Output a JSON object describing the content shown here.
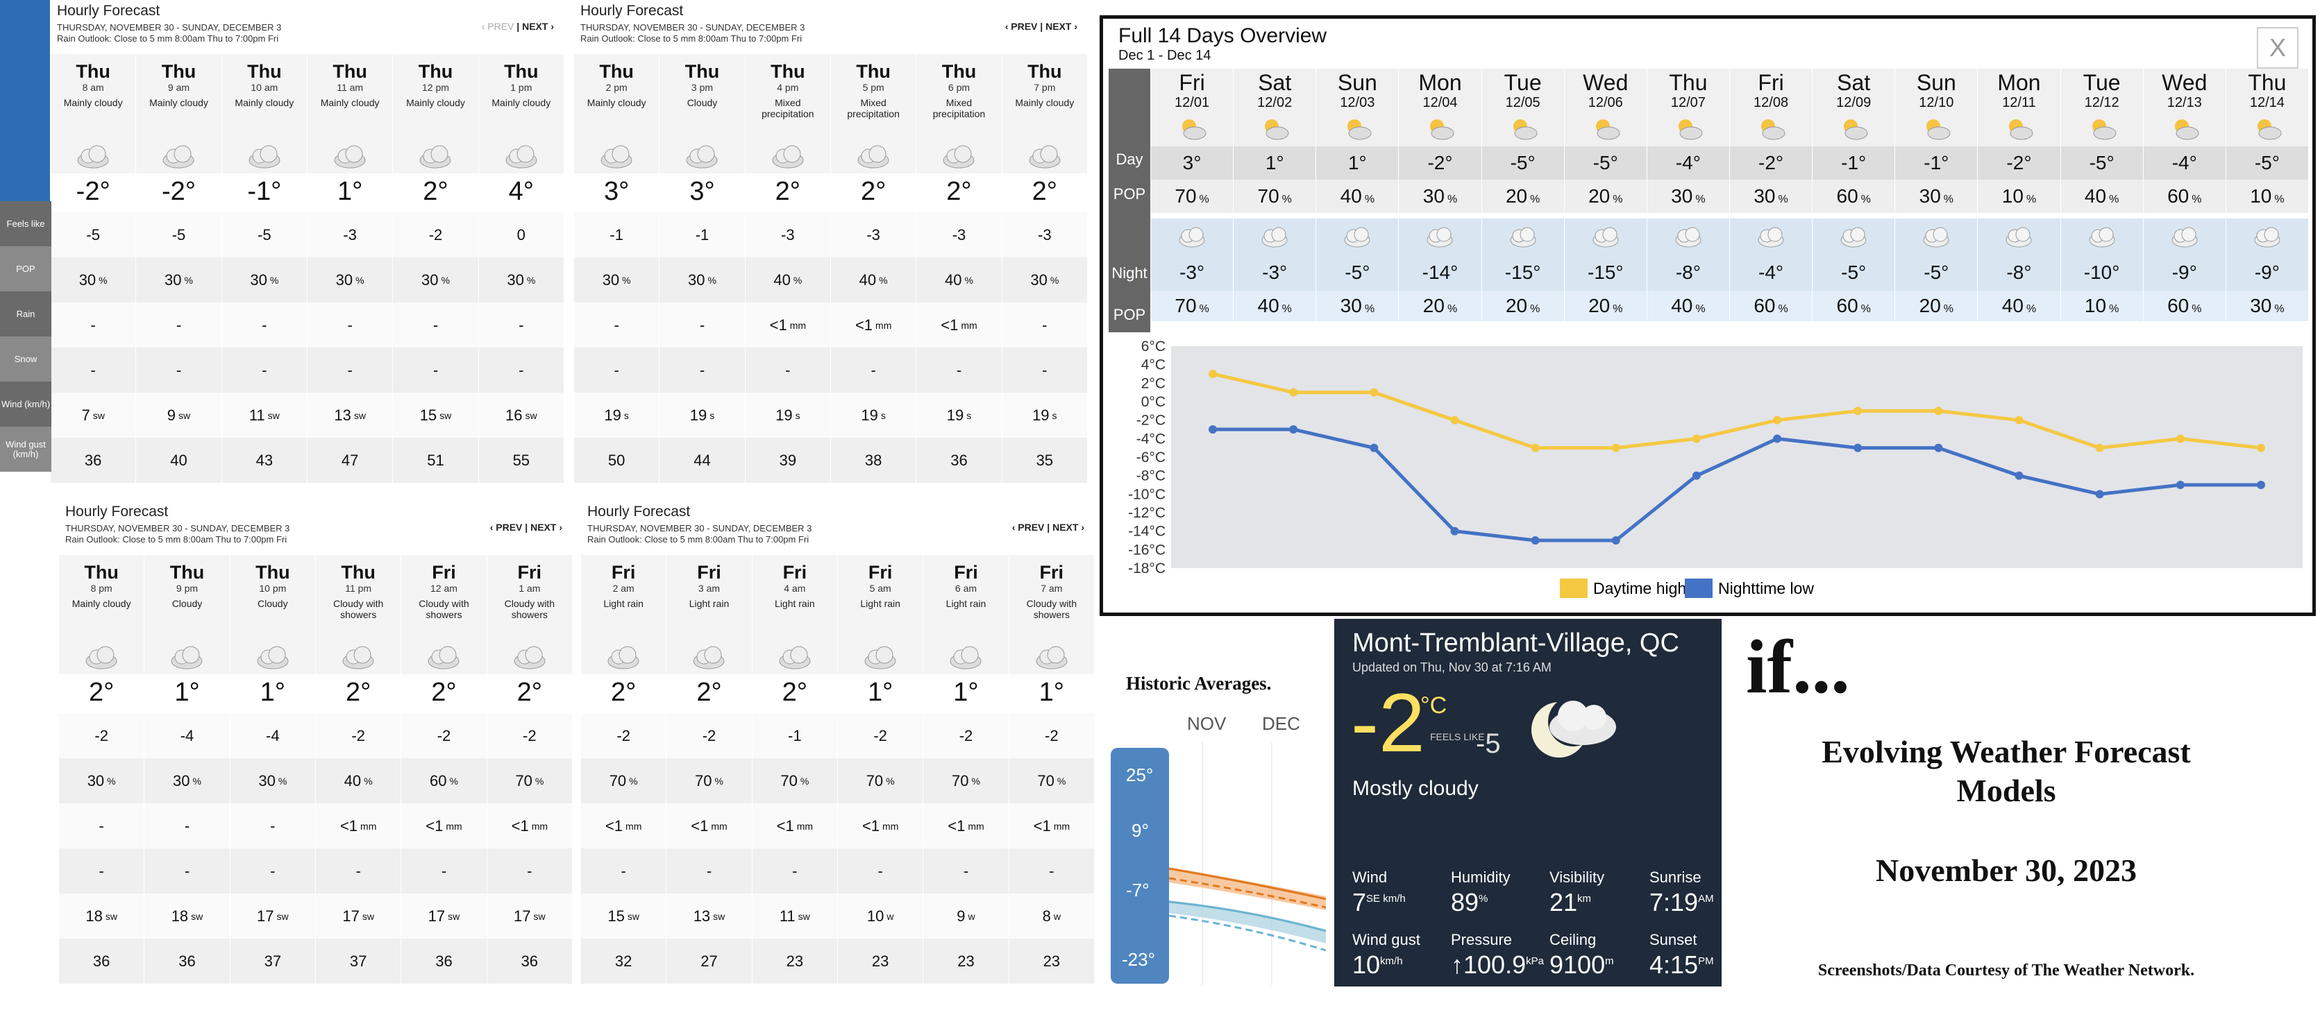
{
  "hourly_panels": [
    {
      "title": "Hourly Forecast",
      "range": "THURSDAY, NOVEMBER 30 - SUNDAY, DECEMBER 3",
      "outlook": "Rain Outlook: Close to 5 mm 8:00am Thu to 7:00pm Fri",
      "prev": "‹ PREV",
      "next": "NEXT ›",
      "cols": [
        {
          "day": "Thu",
          "time": "8 am",
          "cond": "Mainly cloudy",
          "temp": "-2°",
          "feels": "-5",
          "pop": "30",
          "rain": "-",
          "snow": "-",
          "wind": "7",
          "dir": "sw",
          "gust": "36"
        },
        {
          "day": "Thu",
          "time": "9 am",
          "cond": "Mainly cloudy",
          "temp": "-2°",
          "feels": "-5",
          "pop": "30",
          "rain": "-",
          "snow": "-",
          "wind": "9",
          "dir": "sw",
          "gust": "40"
        },
        {
          "day": "Thu",
          "time": "10 am",
          "cond": "Mainly cloudy",
          "temp": "-1°",
          "feels": "-5",
          "pop": "30",
          "rain": "-",
          "snow": "-",
          "wind": "11",
          "dir": "sw",
          "gust": "43"
        },
        {
          "day": "Thu",
          "time": "11 am",
          "cond": "Mainly cloudy",
          "temp": "1°",
          "feels": "-3",
          "pop": "30",
          "rain": "-",
          "snow": "-",
          "wind": "13",
          "dir": "sw",
          "gust": "47"
        },
        {
          "day": "Thu",
          "time": "12 pm",
          "cond": "Mainly cloudy",
          "temp": "2°",
          "feels": "-2",
          "pop": "30",
          "rain": "-",
          "snow": "-",
          "wind": "15",
          "dir": "sw",
          "gust": "51"
        },
        {
          "day": "Thu",
          "time": "1 pm",
          "cond": "Mainly cloudy",
          "temp": "4°",
          "feels": "0",
          "pop": "30",
          "rain": "-",
          "snow": "-",
          "wind": "16",
          "dir": "sw",
          "gust": "55"
        }
      ]
    },
    {
      "title": "Hourly Forecast",
      "range": "THURSDAY, NOVEMBER 30 - SUNDAY, DECEMBER 3",
      "outlook": "Rain Outlook: Close to 5 mm 8:00am Thu to 7:00pm Fri",
      "prev": "‹ PREV",
      "next": "NEXT ›",
      "cols": [
        {
          "day": "Thu",
          "time": "2 pm",
          "cond": "Mainly cloudy",
          "temp": "3°",
          "feels": "-1",
          "pop": "30",
          "rain": "-",
          "snow": "-",
          "wind": "19",
          "dir": "s",
          "gust": "50"
        },
        {
          "day": "Thu",
          "time": "3 pm",
          "cond": "Cloudy",
          "temp": "3°",
          "feels": "-1",
          "pop": "30",
          "rain": "-",
          "snow": "-",
          "wind": "19",
          "dir": "s",
          "gust": "44"
        },
        {
          "day": "Thu",
          "time": "4 pm",
          "cond": "Mixed precipitation",
          "temp": "2°",
          "feels": "-3",
          "pop": "40",
          "rain": "<1",
          "snow": "-",
          "wind": "19",
          "dir": "s",
          "gust": "39"
        },
        {
          "day": "Thu",
          "time": "5 pm",
          "cond": "Mixed precipitation",
          "temp": "2°",
          "feels": "-3",
          "pop": "40",
          "rain": "<1",
          "snow": "-",
          "wind": "19",
          "dir": "s",
          "gust": "38"
        },
        {
          "day": "Thu",
          "time": "6 pm",
          "cond": "Mixed precipitation",
          "temp": "2°",
          "feels": "-3",
          "pop": "40",
          "rain": "<1",
          "snow": "-",
          "wind": "19",
          "dir": "s",
          "gust": "36"
        },
        {
          "day": "Thu",
          "time": "7 pm",
          "cond": "Mainly cloudy",
          "temp": "2°",
          "feels": "-3",
          "pop": "30",
          "rain": "-",
          "snow": "-",
          "wind": "19",
          "dir": "s",
          "gust": "35"
        }
      ]
    },
    {
      "title": "Hourly Forecast",
      "range": "THURSDAY, NOVEMBER 30 - SUNDAY, DECEMBER 3",
      "outlook": "Rain Outlook: Close to 5 mm 8:00am Thu to 7:00pm Fri",
      "prev": "‹ PREV",
      "next": "NEXT ›",
      "cols": [
        {
          "day": "Thu",
          "time": "8 pm",
          "cond": "Mainly cloudy",
          "temp": "2°",
          "feels": "-2",
          "pop": "30",
          "rain": "-",
          "snow": "-",
          "wind": "18",
          "dir": "sw",
          "gust": "36"
        },
        {
          "day": "Thu",
          "time": "9 pm",
          "cond": "Cloudy",
          "temp": "1°",
          "feels": "-4",
          "pop": "30",
          "rain": "-",
          "snow": "-",
          "wind": "18",
          "dir": "sw",
          "gust": "36"
        },
        {
          "day": "Thu",
          "time": "10 pm",
          "cond": "Cloudy",
          "temp": "1°",
          "feels": "-4",
          "pop": "30",
          "rain": "-",
          "snow": "-",
          "wind": "17",
          "dir": "sw",
          "gust": "37"
        },
        {
          "day": "Thu",
          "time": "11 pm",
          "cond": "Cloudy with showers",
          "temp": "2°",
          "feels": "-2",
          "pop": "40",
          "rain": "<1",
          "snow": "-",
          "wind": "17",
          "dir": "sw",
          "gust": "37"
        },
        {
          "day": "Fri",
          "time": "12 am",
          "cond": "Cloudy with showers",
          "temp": "2°",
          "feels": "-2",
          "pop": "60",
          "rain": "<1",
          "snow": "-",
          "wind": "17",
          "dir": "sw",
          "gust": "36"
        },
        {
          "day": "Fri",
          "time": "1 am",
          "cond": "Cloudy with showers",
          "temp": "2°",
          "feels": "-2",
          "pop": "70",
          "rain": "<1",
          "snow": "-",
          "wind": "17",
          "dir": "sw",
          "gust": "36"
        }
      ]
    },
    {
      "title": "Hourly Forecast",
      "range": "THURSDAY, NOVEMBER 30 - SUNDAY, DECEMBER 3",
      "outlook": "Rain Outlook: Close to 5 mm 8:00am Thu to 7:00pm Fri",
      "prev": "‹ PREV",
      "next": "NEXT ›",
      "cols": [
        {
          "day": "Fri",
          "time": "2 am",
          "cond": "Light rain",
          "temp": "2°",
          "feels": "-2",
          "pop": "70",
          "rain": "<1",
          "snow": "-",
          "wind": "15",
          "dir": "sw",
          "gust": "32"
        },
        {
          "day": "Fri",
          "time": "3 am",
          "cond": "Light rain",
          "temp": "2°",
          "feels": "-2",
          "pop": "70",
          "rain": "<1",
          "snow": "-",
          "wind": "13",
          "dir": "sw",
          "gust": "27"
        },
        {
          "day": "Fri",
          "time": "4 am",
          "cond": "Light rain",
          "temp": "2°",
          "feels": "-1",
          "pop": "70",
          "rain": "<1",
          "snow": "-",
          "wind": "11",
          "dir": "sw",
          "gust": "23"
        },
        {
          "day": "Fri",
          "time": "5 am",
          "cond": "Light rain",
          "temp": "1°",
          "feels": "-2",
          "pop": "70",
          "rain": "<1",
          "snow": "-",
          "wind": "10",
          "dir": "w",
          "gust": "23"
        },
        {
          "day": "Fri",
          "time": "6 am",
          "cond": "Light rain",
          "temp": "1°",
          "feels": "-2",
          "pop": "70",
          "rain": "<1",
          "snow": "-",
          "wind": "9",
          "dir": "w",
          "gust": "23"
        },
        {
          "day": "Fri",
          "time": "7 am",
          "cond": "Cloudy with showers",
          "temp": "1°",
          "feels": "-2",
          "pop": "70",
          "rain": "<1",
          "snow": "-",
          "wind": "8",
          "dir": "w",
          "gust": "23"
        }
      ]
    }
  ],
  "row_labels": {
    "feels": "Feels like",
    "pop": "POP",
    "rain": "Rain",
    "snow": "Snow",
    "wind": "Wind (km/h)",
    "gust": "Wind gust (km/h)"
  },
  "units": {
    "pct": "%",
    "mm": "mm"
  },
  "overview": {
    "title": "Full 14 Days Overview",
    "subtitle": "Dec 1 - Dec 14",
    "close": "X",
    "labels": {
      "day": "Day",
      "pop": "POP",
      "night": "Night"
    },
    "days": [
      {
        "dn": "Fri",
        "dd": "12/01",
        "hi": "3°",
        "dpop": "70",
        "lo": "-3°",
        "npop": "70"
      },
      {
        "dn": "Sat",
        "dd": "12/02",
        "hi": "1°",
        "dpop": "70",
        "lo": "-3°",
        "npop": "40"
      },
      {
        "dn": "Sun",
        "dd": "12/03",
        "hi": "1°",
        "dpop": "40",
        "lo": "-5°",
        "npop": "30"
      },
      {
        "dn": "Mon",
        "dd": "12/04",
        "hi": "-2°",
        "dpop": "30",
        "lo": "-14°",
        "npop": "20"
      },
      {
        "dn": "Tue",
        "dd": "12/05",
        "hi": "-5°",
        "dpop": "20",
        "lo": "-15°",
        "npop": "20"
      },
      {
        "dn": "Wed",
        "dd": "12/06",
        "hi": "-5°",
        "dpop": "20",
        "lo": "-15°",
        "npop": "20"
      },
      {
        "dn": "Thu",
        "dd": "12/07",
        "hi": "-4°",
        "dpop": "30",
        "lo": "-8°",
        "npop": "40"
      },
      {
        "dn": "Fri",
        "dd": "12/08",
        "hi": "-2°",
        "dpop": "30",
        "lo": "-4°",
        "npop": "60"
      },
      {
        "dn": "Sat",
        "dd": "12/09",
        "hi": "-1°",
        "dpop": "60",
        "lo": "-5°",
        "npop": "60"
      },
      {
        "dn": "Sun",
        "dd": "12/10",
        "hi": "-1°",
        "dpop": "30",
        "lo": "-5°",
        "npop": "20"
      },
      {
        "dn": "Mon",
        "dd": "12/11",
        "hi": "-2°",
        "dpop": "10",
        "lo": "-8°",
        "npop": "40"
      },
      {
        "dn": "Tue",
        "dd": "12/12",
        "hi": "-5°",
        "dpop": "40",
        "lo": "-10°",
        "npop": "10"
      },
      {
        "dn": "Wed",
        "dd": "12/13",
        "hi": "-4°",
        "dpop": "60",
        "lo": "-9°",
        "npop": "60"
      },
      {
        "dn": "Thu",
        "dd": "12/14",
        "hi": "-5°",
        "dpop": "10",
        "lo": "-9°",
        "npop": "30"
      }
    ]
  },
  "chart_data": {
    "type": "line",
    "x": [
      "12/01",
      "12/02",
      "12/03",
      "12/04",
      "12/05",
      "12/06",
      "12/07",
      "12/08",
      "12/09",
      "12/10",
      "12/11",
      "12/12",
      "12/13",
      "12/14"
    ],
    "series": [
      {
        "name": "Daytime high",
        "color": "#f5c842",
        "values": [
          3,
          1,
          1,
          -2,
          -5,
          -5,
          -4,
          -2,
          -1,
          -1,
          -2,
          -5,
          -4,
          -5
        ]
      },
      {
        "name": "Nighttime low",
        "color": "#4472c4",
        "values": [
          -3,
          -3,
          -5,
          -14,
          -15,
          -15,
          -8,
          -4,
          -5,
          -5,
          -8,
          -10,
          -9,
          -9
        ]
      }
    ],
    "yticks": [
      "6°C",
      "4°C",
      "2°C",
      "0°C",
      "-2°C",
      "-4°C",
      "-6°C",
      "-8°C",
      "-10°C",
      "-12°C",
      "-14°C",
      "-16°C",
      "-18°C"
    ],
    "ylim": [
      -18,
      6
    ],
    "grid": false,
    "legend": "bottom"
  },
  "current": {
    "city": "Mont-Tremblant-Village, QC",
    "updated": "Updated on Thu, Nov 30 at 7:16 AM",
    "temp": "-2",
    "unit": "°C",
    "feels_label": "FEELS LIKE",
    "feels": "-5",
    "cond": "Mostly cloudy",
    "wind_l": "Wind",
    "wind": "7",
    "wind_u": "SE km/h",
    "hum_l": "Humidity",
    "hum": "89",
    "hum_u": "%",
    "vis_l": "Visibility",
    "vis": "21",
    "vis_u": "km",
    "sunr_l": "Sunrise",
    "sunr": "7:19",
    "sunr_u": "AM",
    "gust_l": "Wind gust",
    "gust": "10",
    "gust_u": "km/h",
    "pres_l": "Pressure",
    "pres": "↑100.9",
    "pres_u": "kPa",
    "ceil_l": "Ceiling",
    "ceil": "9100",
    "ceil_u": "m",
    "suns_l": "Sunset",
    "suns": "4:15",
    "suns_u": "PM"
  },
  "historic": {
    "title": "Historic Averages.",
    "m1": "NOV",
    "m2": "DEC",
    "ticks": [
      "25°",
      "9°",
      "-7°",
      "-23°"
    ]
  },
  "text": {
    "ifs": "if...",
    "evolving": "Evolving Weather Forecast Models",
    "date": "November 30, 2023",
    "credit": "Screenshots/Data Courtesy of The Weather Network."
  },
  "colors": {
    "accent": "#2e6db4",
    "high": "#f5c842",
    "low": "#4472c4"
  }
}
